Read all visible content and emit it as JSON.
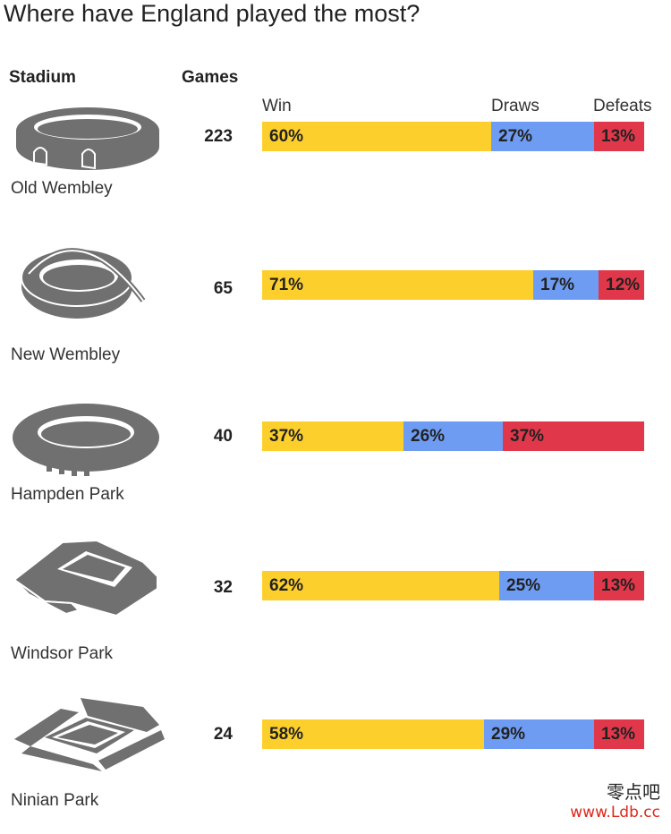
{
  "title": "Where have England played the most?",
  "headers": {
    "stadium": "Stadium",
    "games": "Games",
    "win": "Win",
    "draws": "Draws",
    "defeats": "Defeats"
  },
  "colors": {
    "win": "#fccf2c",
    "draw": "#6e9cf2",
    "defeat": "#e0384a",
    "icon": "#707070"
  },
  "chart_data": {
    "type": "bar",
    "stacked": true,
    "percent": true,
    "categories": [
      "Old Wembley",
      "New Wembley",
      "Hampden Park",
      "Windsor Park",
      "Ninian Park"
    ],
    "games": [
      223,
      65,
      40,
      32,
      24
    ],
    "series": [
      {
        "name": "Win",
        "values": [
          60,
          71,
          37,
          62,
          58
        ]
      },
      {
        "name": "Draws",
        "values": [
          27,
          17,
          26,
          25,
          29
        ]
      },
      {
        "name": "Defeats",
        "values": [
          13,
          12,
          37,
          13,
          13
        ]
      }
    ]
  },
  "rows": [
    {
      "name": "Old Wembley",
      "icon": "old-wembley-icon",
      "games": "223",
      "win": "60%",
      "draw": "27%",
      "defeat": "13%"
    },
    {
      "name": "New Wembley",
      "icon": "new-wembley-icon",
      "games": "65",
      "win": "71%",
      "draw": "17%",
      "defeat": "12%"
    },
    {
      "name": "Hampden Park",
      "icon": "hampden-park-icon",
      "games": "40",
      "win": "37%",
      "draw": "26%",
      "defeat": "37%"
    },
    {
      "name": "Windsor Park",
      "icon": "windsor-park-icon",
      "games": "32",
      "win": "62%",
      "draw": "25%",
      "defeat": "13%"
    },
    {
      "name": "Ninian Park",
      "icon": "ninian-park-icon",
      "games": "24",
      "win": "58%",
      "draw": "29%",
      "defeat": "13%"
    }
  ],
  "watermark": {
    "chinese": "零点吧",
    "url": "www.Ldb.cc"
  }
}
